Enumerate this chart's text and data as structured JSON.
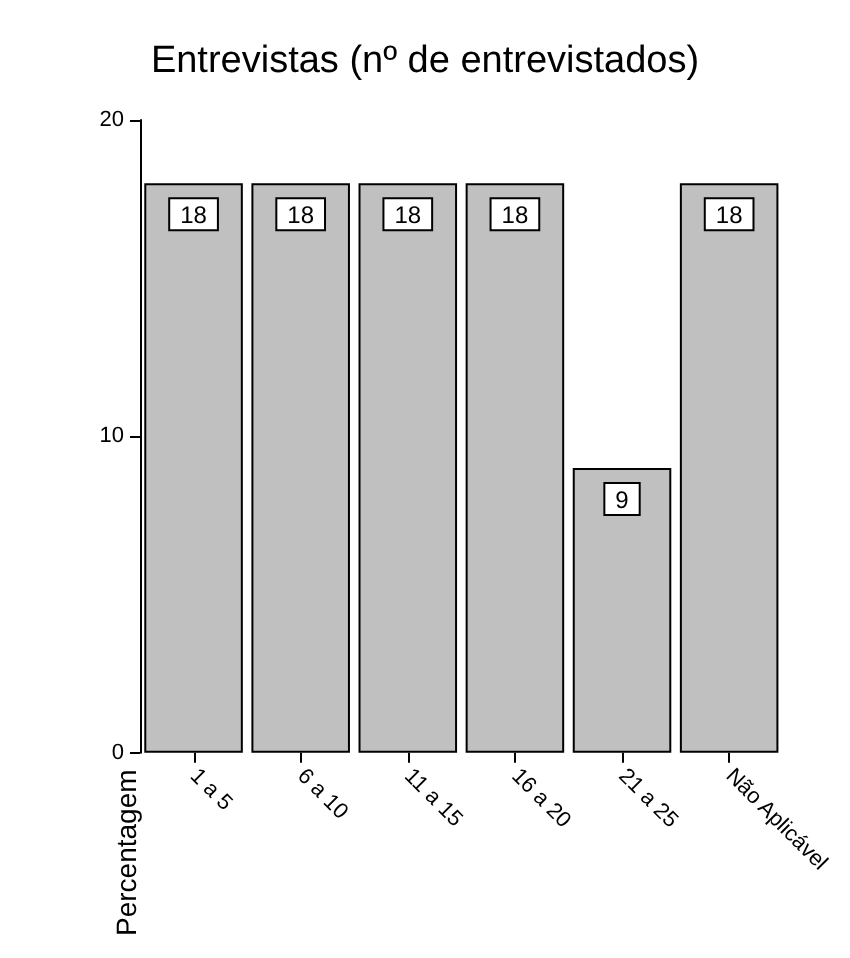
{
  "chart_data": {
    "type": "bar",
    "title": "Entrevistas (nº de entrevistados)",
    "ylabel": "Percentagem",
    "categories": [
      "1 a 5",
      "6 a 10",
      "11 a 15",
      "16 a 20",
      "21 a 25",
      "Não Aplicável"
    ],
    "values": [
      18,
      18,
      18,
      18,
      9,
      18
    ],
    "color": "#c0c0c0",
    "ylim": [
      0,
      20
    ],
    "yticks": [
      0,
      10,
      20
    ],
    "data_labels": true
  }
}
